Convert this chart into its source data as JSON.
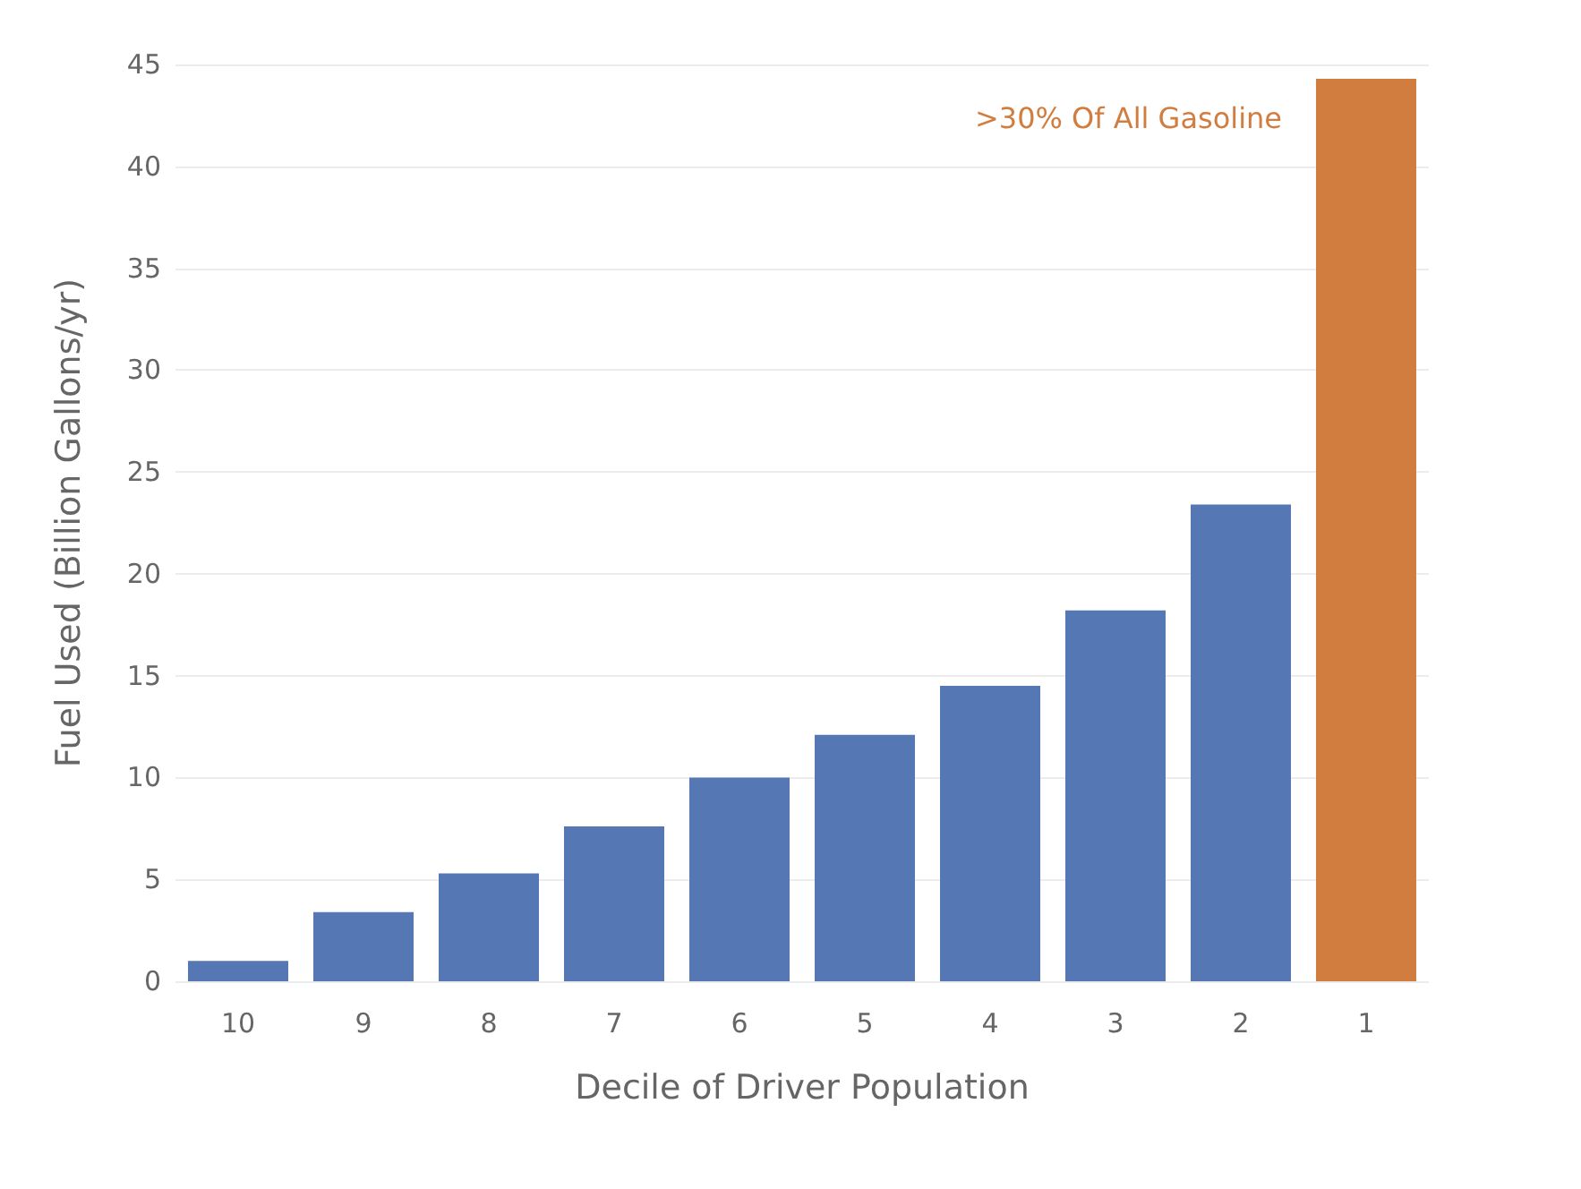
{
  "chart_data": {
    "type": "bar",
    "xlabel": "Decile of Driver Population",
    "ylabel": "Fuel Used (Billion Gallons/yr)",
    "categories": [
      "10",
      "9",
      "8",
      "7",
      "6",
      "5",
      "4",
      "3",
      "2",
      "1"
    ],
    "values": [
      1.0,
      3.4,
      5.3,
      7.6,
      10.0,
      12.1,
      14.5,
      18.2,
      23.4,
      44.3
    ],
    "colors": [
      "#5578b4",
      "#5578b4",
      "#5578b4",
      "#5578b4",
      "#5578b4",
      "#5578b4",
      "#5578b4",
      "#5578b4",
      "#5578b4",
      "#d27d40"
    ],
    "ylim": [
      0,
      45
    ],
    "yticks": [
      0,
      5,
      10,
      15,
      20,
      25,
      30,
      35,
      40,
      45
    ],
    "grid": "y",
    "annotations": [
      ">30% Of All Gasoline"
    ]
  }
}
